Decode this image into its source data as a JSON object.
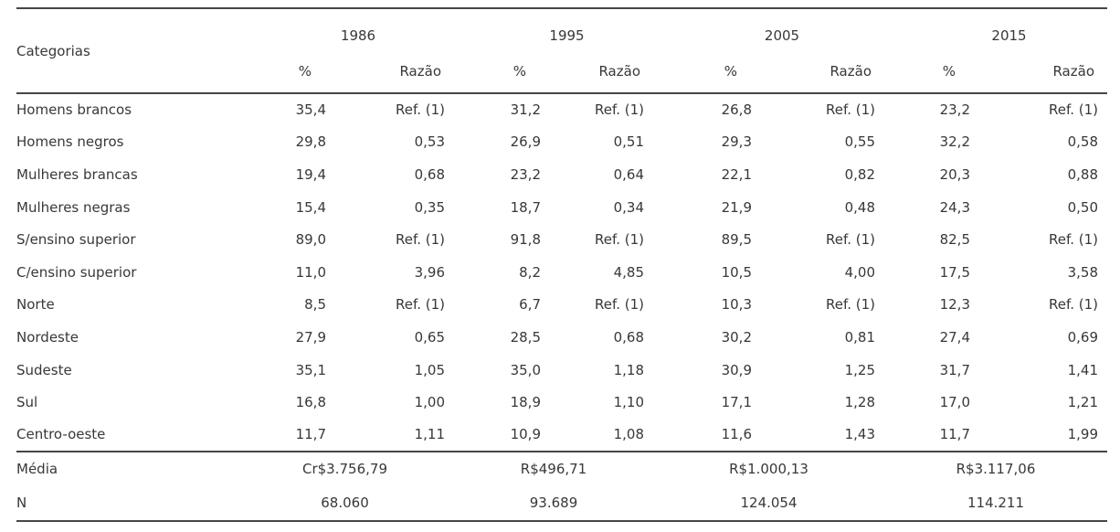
{
  "colors": {
    "text": "#383838",
    "rule": "#464646",
    "background": "#ffffff"
  },
  "table": {
    "corner_label": "Categorias",
    "years": [
      "1986",
      "1995",
      "2005",
      "2015"
    ],
    "subheaders": {
      "pct": "%",
      "ratio": "Razão"
    },
    "rows": [
      {
        "label": "Homens brancos",
        "cells": [
          "35,4",
          "Ref. (1)",
          "31,2",
          "Ref. (1)",
          "26,8",
          "Ref. (1)",
          "23,2",
          "Ref. (1)"
        ]
      },
      {
        "label": "Homens negros",
        "cells": [
          "29,8",
          "0,53",
          "26,9",
          "0,51",
          "29,3",
          "0,55",
          "32,2",
          "0,58"
        ]
      },
      {
        "label": "Mulheres brancas",
        "cells": [
          "19,4",
          "0,68",
          "23,2",
          "0,64",
          "22,1",
          "0,82",
          "20,3",
          "0,88"
        ]
      },
      {
        "label": "Mulheres negras",
        "cells": [
          "15,4",
          "0,35",
          "18,7",
          "0,34",
          "21,9",
          "0,48",
          "24,3",
          "0,50"
        ]
      },
      {
        "label": "S/ensino superior",
        "cells": [
          "89,0",
          "Ref. (1)",
          "91,8",
          "Ref. (1)",
          "89,5",
          "Ref. (1)",
          "82,5",
          "Ref. (1)"
        ]
      },
      {
        "label": "C/ensino superior",
        "cells": [
          "11,0",
          "3,96",
          "8,2",
          "4,85",
          "10,5",
          "4,00",
          "17,5",
          "3,58"
        ]
      },
      {
        "label": "Norte",
        "cells": [
          "8,5",
          "Ref. (1)",
          "6,7",
          "Ref. (1)",
          "10,3",
          "Ref. (1)",
          "12,3",
          "Ref. (1)"
        ]
      },
      {
        "label": "Nordeste",
        "cells": [
          "27,9",
          "0,65",
          "28,5",
          "0,68",
          "30,2",
          "0,81",
          "27,4",
          "0,69"
        ]
      },
      {
        "label": "Sudeste",
        "cells": [
          "35,1",
          "1,05",
          "35,0",
          "1,18",
          "30,9",
          "1,25",
          "31,7",
          "1,41"
        ]
      },
      {
        "label": "Sul",
        "cells": [
          "16,8",
          "1,00",
          "18,9",
          "1,10",
          "17,1",
          "1,28",
          "17,0",
          "1,21"
        ]
      },
      {
        "label": "Centro-oeste",
        "cells": [
          "11,7",
          "1,11",
          "10,9",
          "1,08",
          "11,6",
          "1,43",
          "11,7",
          "1,99"
        ]
      }
    ],
    "footer": [
      {
        "label": "Média",
        "values": [
          "Cr$3.756,79",
          "R$496,71",
          "R$1.000,13",
          "R$3.117,06"
        ]
      },
      {
        "label": "N",
        "values": [
          "68.060",
          "93.689",
          "124.054",
          "114.211"
        ]
      }
    ]
  },
  "chart_data": {
    "type": "table",
    "title": "",
    "columns": [
      "Categorias",
      "1986 %",
      "1986 Razão",
      "1995 %",
      "1995 Razão",
      "2005 %",
      "2005 Razão",
      "2015 %",
      "2015 Razão"
    ],
    "rows": [
      [
        "Homens brancos",
        "35,4",
        "Ref. (1)",
        "31,2",
        "Ref. (1)",
        "26,8",
        "Ref. (1)",
        "23,2",
        "Ref. (1)"
      ],
      [
        "Homens negros",
        "29,8",
        "0,53",
        "26,9",
        "0,51",
        "29,3",
        "0,55",
        "32,2",
        "0,58"
      ],
      [
        "Mulheres brancas",
        "19,4",
        "0,68",
        "23,2",
        "0,64",
        "22,1",
        "0,82",
        "20,3",
        "0,88"
      ],
      [
        "Mulheres negras",
        "15,4",
        "0,35",
        "18,7",
        "0,34",
        "21,9",
        "0,48",
        "24,3",
        "0,50"
      ],
      [
        "S/ensino superior",
        "89,0",
        "Ref. (1)",
        "91,8",
        "Ref. (1)",
        "89,5",
        "Ref. (1)",
        "82,5",
        "Ref. (1)"
      ],
      [
        "C/ensino superior",
        "11,0",
        "3,96",
        "8,2",
        "4,85",
        "10,5",
        "4,00",
        "17,5",
        "3,58"
      ],
      [
        "Norte",
        "8,5",
        "Ref. (1)",
        "6,7",
        "Ref. (1)",
        "10,3",
        "Ref. (1)",
        "12,3",
        "Ref. (1)"
      ],
      [
        "Nordeste",
        "27,9",
        "0,65",
        "28,5",
        "0,68",
        "30,2",
        "0,81",
        "27,4",
        "0,69"
      ],
      [
        "Sudeste",
        "35,1",
        "1,05",
        "35,0",
        "1,18",
        "30,9",
        "1,25",
        "31,7",
        "1,41"
      ],
      [
        "Sul",
        "16,8",
        "1,00",
        "18,9",
        "1,10",
        "17,1",
        "1,28",
        "17,0",
        "1,21"
      ],
      [
        "Centro-oeste",
        "11,7",
        "1,11",
        "10,9",
        "1,08",
        "11,6",
        "1,43",
        "11,7",
        "1,99"
      ],
      [
        "Média",
        "Cr$3.756,79",
        "",
        "R$496,71",
        "",
        "R$1.000,13",
        "",
        "R$3.117,06",
        ""
      ],
      [
        "N",
        "68.060",
        "",
        "93.689",
        "",
        "124.054",
        "",
        "114.211",
        ""
      ]
    ]
  }
}
